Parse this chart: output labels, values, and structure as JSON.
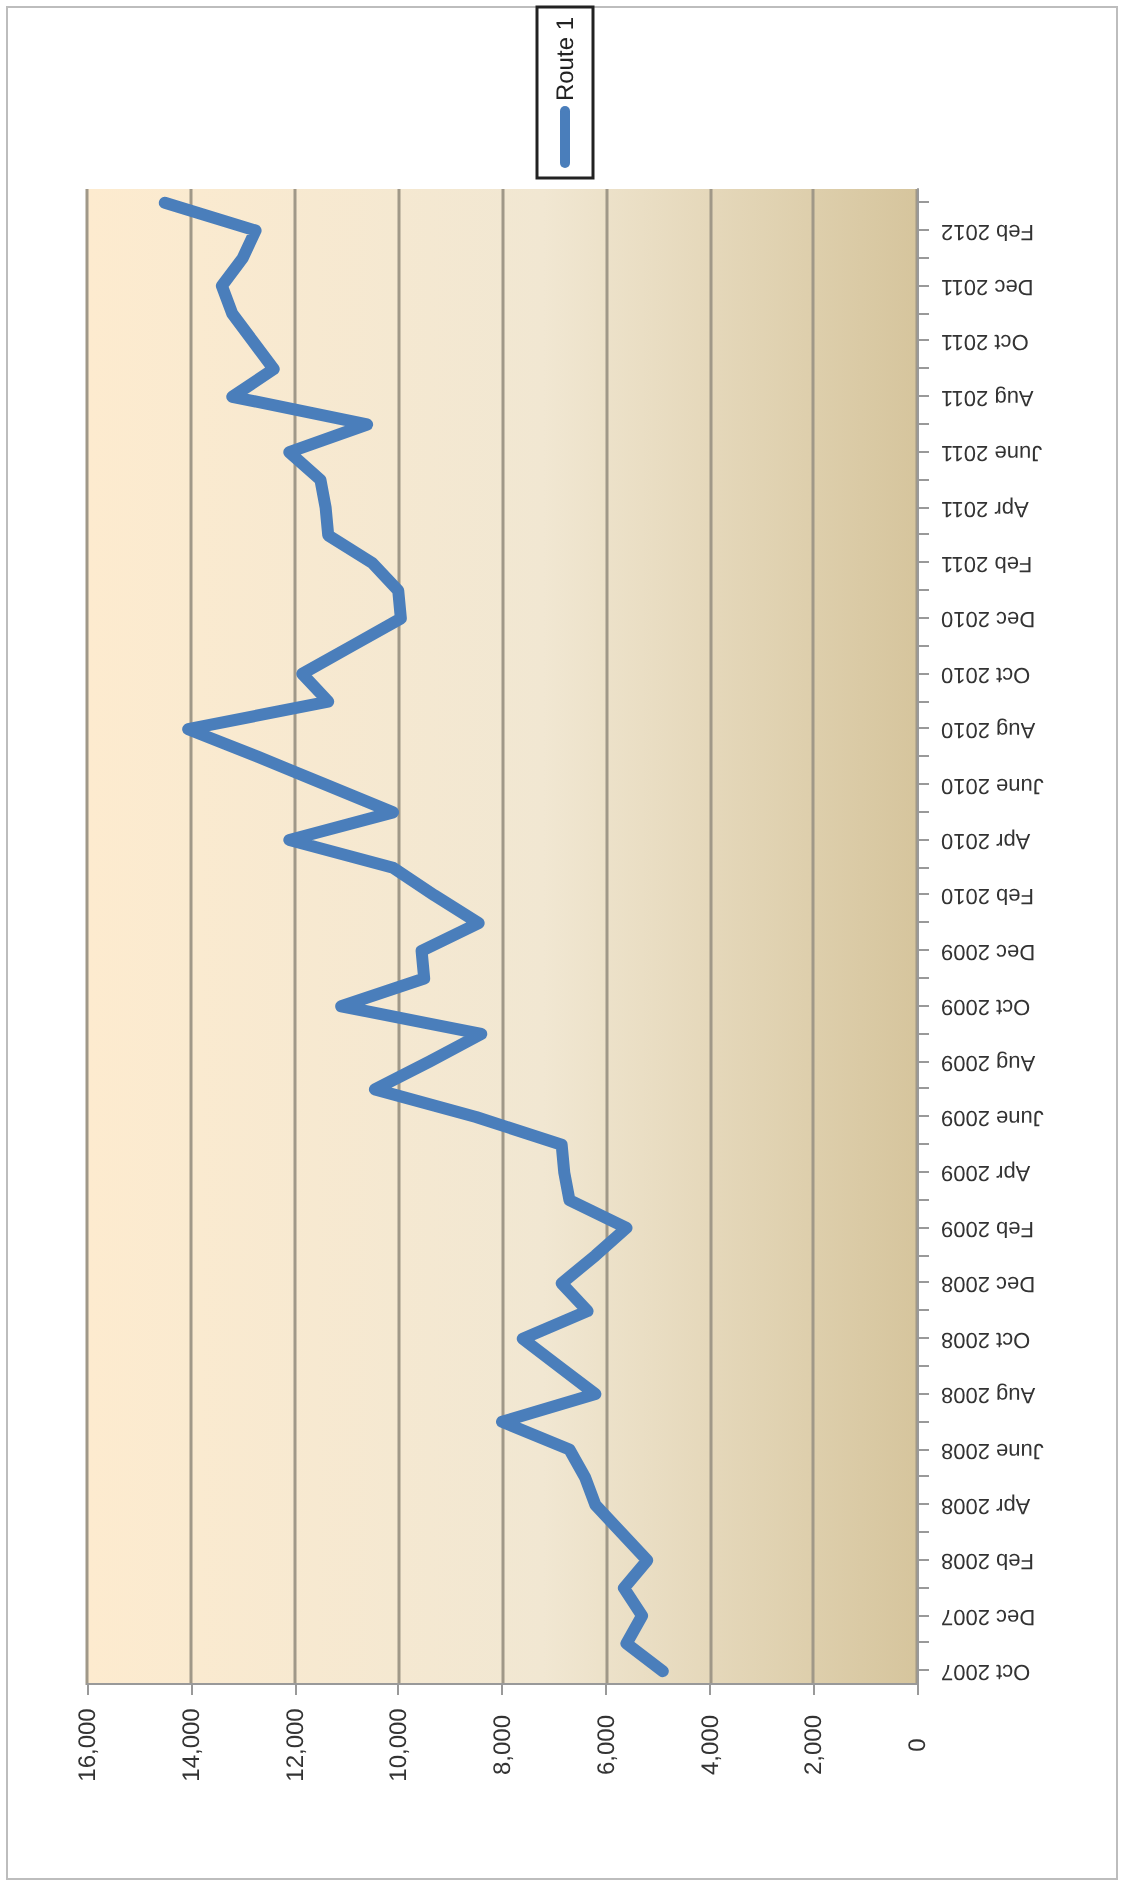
{
  "chart_data": {
    "type": "line",
    "orientation": "horizontal",
    "categories": [
      null,
      "Feb 2012",
      null,
      "Dec 2011",
      null,
      "Oct 2011",
      null,
      "Aug 2011",
      null,
      "June 2011",
      null,
      "Apr 2011",
      null,
      "Feb 2011",
      null,
      "Dec 2010",
      null,
      "Oct 2010",
      null,
      "Aug 2010",
      null,
      "June 2010",
      null,
      "Apr 2010",
      null,
      "Feb 2010",
      null,
      "Dec 2009",
      null,
      "Oct 2009",
      null,
      "Aug 2009",
      null,
      "June 2009",
      null,
      "Apr 2009",
      null,
      "Feb 2009",
      null,
      "Dec 2008",
      null,
      "Oct 2008",
      null,
      "Aug 2008",
      null,
      "June 2008",
      null,
      "Apr 2008",
      null,
      "Feb 2008",
      null,
      "Dec 2007",
      null,
      "Oct 2007"
    ],
    "series": [
      {
        "name": "Route 1",
        "color": "#4a7ebb",
        "values": [
          14500,
          12750,
          13000,
          13400,
          13200,
          12800,
          12400,
          13200,
          10600,
          12100,
          11500,
          11400,
          11350,
          10500,
          10000,
          9950,
          10900,
          11850,
          11350,
          14050,
          12700,
          11400,
          10100,
          12100,
          10100,
          9300,
          8450,
          9550,
          9500,
          11100,
          8400,
          9400,
          10450,
          8500,
          6850,
          6800,
          6700,
          5600,
          6200,
          6850,
          6350,
          7600,
          6900,
          6200,
          8000,
          6700,
          6400,
          6200,
          5700,
          5200,
          5650,
          5300,
          5600,
          4900
        ]
      }
    ],
    "xlim": [
      16000,
      0
    ],
    "xticks": [
      {
        "value": 16000,
        "label": "16,000"
      },
      {
        "value": 14000,
        "label": "14,000"
      },
      {
        "value": 12000,
        "label": "12,000"
      },
      {
        "value": 10000,
        "label": "10,000"
      },
      {
        "value": 8000,
        "label": "8,000"
      },
      {
        "value": 6000,
        "label": "6,000"
      },
      {
        "value": 4000,
        "label": "4,000"
      },
      {
        "value": 2000,
        "label": "2,000"
      },
      {
        "value": 0,
        "label": "0"
      }
    ],
    "grid": "x",
    "legend": "top",
    "marker": "none",
    "line_style": "solid"
  }
}
